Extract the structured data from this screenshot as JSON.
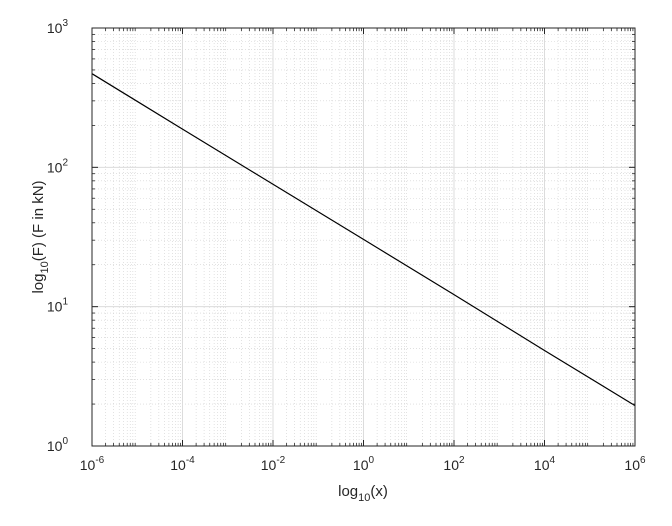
{
  "chart_data": {
    "type": "line",
    "title": "",
    "x_scale": "log",
    "y_scale": "log",
    "xlabel": {
      "main": "log",
      "sub": "10",
      "rest": "(x)"
    },
    "ylabel": {
      "main": "log",
      "sub": "10",
      "rest": "(F) (F in kN)"
    },
    "xlim": [
      1e-06,
      1000000.0
    ],
    "ylim": [
      1,
      1000
    ],
    "grid": true,
    "minor_grid": true,
    "box": true,
    "xticks": [
      {
        "value": 1e-06,
        "base": "10",
        "exp": "-6"
      },
      {
        "value": 0.0001,
        "base": "10",
        "exp": "-4"
      },
      {
        "value": 0.01,
        "base": "10",
        "exp": "-2"
      },
      {
        "value": 1,
        "base": "10",
        "exp": "0"
      },
      {
        "value": 100,
        "base": "10",
        "exp": "2"
      },
      {
        "value": 10000,
        "base": "10",
        "exp": "4"
      },
      {
        "value": 1000000,
        "base": "10",
        "exp": "6"
      }
    ],
    "yticks": [
      {
        "value": 1,
        "base": "10",
        "exp": "0"
      },
      {
        "value": 10,
        "base": "10",
        "exp": "1"
      },
      {
        "value": 100,
        "base": "10",
        "exp": "2"
      },
      {
        "value": 1000,
        "base": "10",
        "exp": "3"
      }
    ],
    "series": [
      {
        "color": "#000000",
        "x": [
          1e-06,
          0.0001,
          0.01,
          1,
          100,
          10000,
          1000000
        ],
        "y": [
          470,
          188,
          75.6,
          30.4,
          12.2,
          4.85,
          1.95
        ]
      }
    ]
  }
}
